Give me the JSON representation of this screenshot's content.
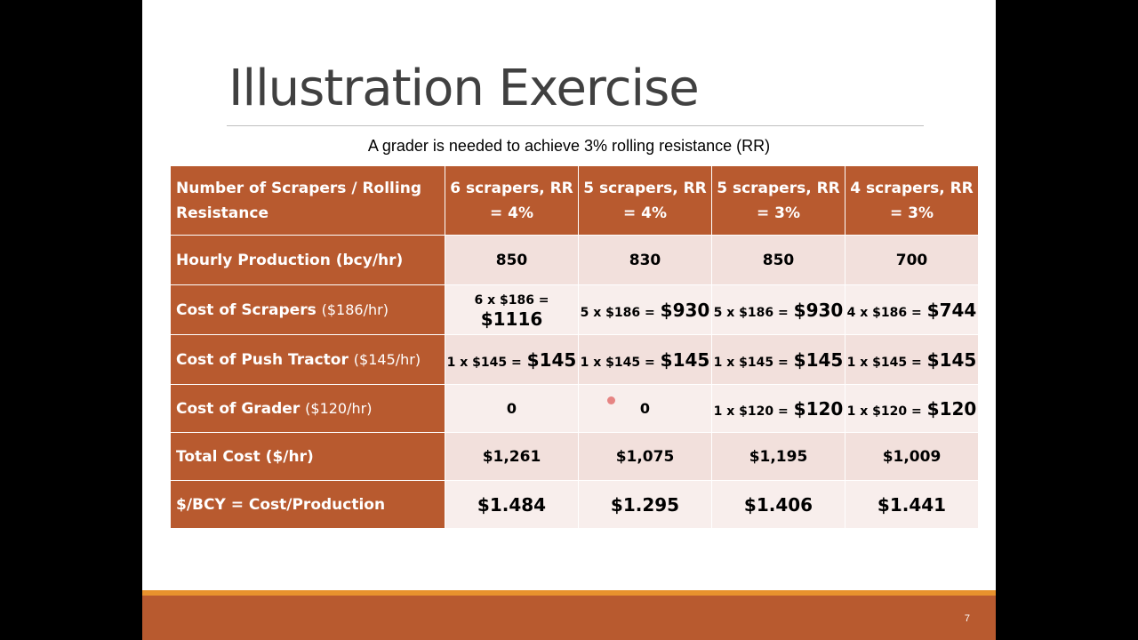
{
  "slide": {
    "title": "Illustration Exercise",
    "subtitle": "A grader is needed to achieve 3% rolling resistance (RR)",
    "page_number": "7"
  },
  "table": {
    "corner_header": "Number of Scrapers / Rolling Resistance",
    "columns": [
      "6 scrapers, RR = 4%",
      "5 scrapers, RR = 4%",
      "5 scrapers, RR = 3%",
      "4 scrapers, RR = 3%"
    ],
    "rows": [
      {
        "label": "Hourly Production (bcy/hr)",
        "rate": "",
        "cells": [
          {
            "calc": "",
            "amt": "850"
          },
          {
            "calc": "",
            "amt": "830"
          },
          {
            "calc": "",
            "amt": "850"
          },
          {
            "calc": "",
            "amt": "700"
          }
        ]
      },
      {
        "label": "Cost of Scrapers",
        "rate": "($186/hr)",
        "cells": [
          {
            "calc": "6 x $186 =",
            "amt": "$1116"
          },
          {
            "calc": "5 x $186 =",
            "amt": "$930"
          },
          {
            "calc": "5 x $186 =",
            "amt": "$930"
          },
          {
            "calc": "4 x $186 =",
            "amt": "$744"
          }
        ]
      },
      {
        "label": "Cost of Push Tractor",
        "rate": "($145/hr)",
        "cells": [
          {
            "calc": "1 x $145 =",
            "amt": "$145"
          },
          {
            "calc": "1 x $145 =",
            "amt": "$145"
          },
          {
            "calc": "1 x $145 =",
            "amt": "$145"
          },
          {
            "calc": "1 x $145 =",
            "amt": "$145"
          }
        ]
      },
      {
        "label": "Cost of Grader",
        "rate": "($120/hr)",
        "cells": [
          {
            "calc": "",
            "amt": "0"
          },
          {
            "calc": "",
            "amt": "0"
          },
          {
            "calc": "1 x $120 =",
            "amt": "$120"
          },
          {
            "calc": "1 x $120 =",
            "amt": "$120"
          }
        ]
      },
      {
        "label": "Total Cost ($/hr)",
        "rate": "",
        "cells": [
          {
            "calc": "",
            "amt": "$1,261"
          },
          {
            "calc": "",
            "amt": "$1,075"
          },
          {
            "calc": "",
            "amt": "$1,195"
          },
          {
            "calc": "",
            "amt": "$1,009"
          }
        ]
      },
      {
        "label": "$/BCY = Cost/Production",
        "rate": "",
        "cells": [
          {
            "calc": "",
            "amt": "$1.484"
          },
          {
            "calc": "",
            "amt": "$1.295"
          },
          {
            "calc": "",
            "amt": "$1.406"
          },
          {
            "calc": "",
            "amt": "$1.441"
          }
        ]
      }
    ]
  },
  "colors": {
    "header_bg": "#b85a2f",
    "row_odd_bg": "#f2e0dc",
    "row_even_bg": "#f8eeec",
    "footer_accent": "#e8922d"
  }
}
